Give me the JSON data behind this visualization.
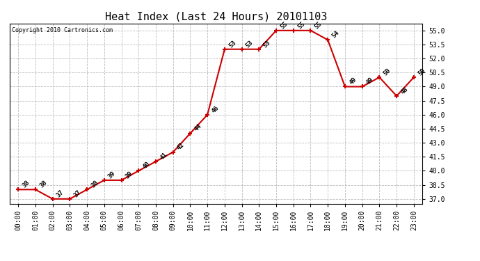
{
  "title": "Heat Index (Last 24 Hours) 20101103",
  "copyright_text": "Copyright 2010 Cartronics.com",
  "x_labels": [
    "00:00",
    "01:00",
    "02:00",
    "03:00",
    "04:00",
    "05:00",
    "06:00",
    "07:00",
    "08:00",
    "09:00",
    "10:00",
    "11:00",
    "12:00",
    "13:00",
    "14:00",
    "15:00",
    "16:00",
    "17:00",
    "18:00",
    "19:00",
    "20:00",
    "21:00",
    "22:00",
    "23:00"
  ],
  "y_values": [
    38,
    38,
    37,
    37,
    38,
    39,
    39,
    40,
    41,
    42,
    44,
    46,
    53,
    53,
    53,
    55,
    55,
    55,
    54,
    49,
    49,
    50,
    48,
    50
  ],
  "y_ticks": [
    37.0,
    38.5,
    40.0,
    41.5,
    43.0,
    44.5,
    46.0,
    47.5,
    49.0,
    50.5,
    52.0,
    53.5,
    55.0
  ],
  "ylim": [
    36.5,
    55.75
  ],
  "line_color": "#cc0000",
  "bg_color": "#ffffff",
  "grid_color": "#bbbbbb",
  "title_fontsize": 11,
  "annotation_fontsize": 6.5,
  "copyright_fontsize": 6,
  "tick_fontsize": 7,
  "ytick_fontsize": 7
}
